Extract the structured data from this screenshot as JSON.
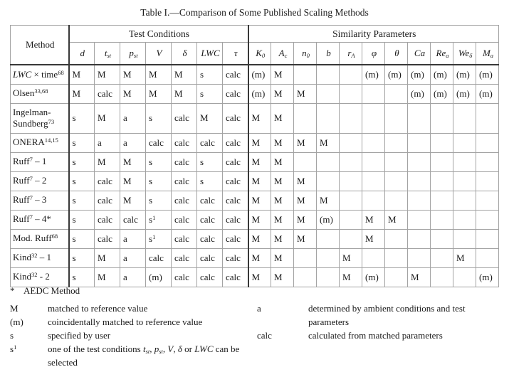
{
  "title": "Table I.—Comparison of Some Published Scaling Methods",
  "table": {
    "method_header": "Method",
    "group_headers": [
      {
        "label": "Test Conditions",
        "span": 7
      },
      {
        "label": "Similarity Parameters",
        "span": 11
      }
    ],
    "test_condition_columns": [
      [
        [
          "i",
          "d"
        ]
      ],
      [
        [
          "i",
          "t"
        ],
        [
          "sub",
          "st"
        ]
      ],
      [
        [
          "i",
          "p"
        ],
        [
          "sub",
          "st"
        ]
      ],
      [
        [
          "i",
          "V"
        ]
      ],
      [
        [
          "i",
          "δ"
        ]
      ],
      [
        [
          "i",
          "LWC"
        ]
      ],
      [
        [
          "i",
          "τ"
        ]
      ]
    ],
    "similarity_columns": [
      [
        [
          "i",
          "K"
        ],
        [
          "sub",
          "0"
        ]
      ],
      [
        [
          "i",
          "A"
        ],
        [
          "sub",
          "c"
        ]
      ],
      [
        [
          "i",
          "n"
        ],
        [
          "sub",
          "0"
        ]
      ],
      [
        [
          "i",
          "b"
        ]
      ],
      [
        [
          "i",
          "r"
        ],
        [
          "sub",
          "A"
        ]
      ],
      [
        [
          "i",
          "φ"
        ]
      ],
      [
        [
          "i",
          "θ"
        ]
      ],
      [
        [
          "i",
          "Ca"
        ]
      ],
      [
        [
          "i",
          "Re"
        ],
        [
          "sub",
          "a"
        ]
      ],
      [
        [
          "i",
          "We"
        ],
        [
          "sub",
          "δ"
        ]
      ],
      [
        [
          "i",
          "M"
        ],
        [
          "sub",
          "a"
        ]
      ]
    ],
    "rows": [
      {
        "method": [
          [
            "i",
            "LWC"
          ],
          [
            "n",
            " × time"
          ],
          [
            "sup",
            "68"
          ]
        ],
        "test": [
          "M",
          "M",
          "M",
          "M",
          "M",
          "s",
          "calc"
        ],
        "sim": [
          "(m)",
          "M",
          "",
          "",
          "",
          "(m)",
          "(m)",
          "(m)",
          "(m)",
          "(m)",
          "(m)"
        ]
      },
      {
        "method": [
          [
            "n",
            "Olsen"
          ],
          [
            "sup",
            "33,68"
          ]
        ],
        "test": [
          "M",
          "calc",
          "M",
          "M",
          "M",
          "s",
          "calc"
        ],
        "sim": [
          "(m)",
          "M",
          "M",
          "",
          "",
          "",
          "",
          "(m)",
          "(m)",
          "(m)",
          "(m)"
        ]
      },
      {
        "method": [
          [
            "n",
            "Ingelman-Sundberg"
          ],
          [
            "sup",
            "73"
          ]
        ],
        "tall": true,
        "test": [
          "s",
          "M",
          "a",
          "s",
          "calc",
          "M",
          "calc"
        ],
        "sim": [
          "M",
          "M",
          "",
          "",
          "",
          "",
          "",
          "",
          "",
          "",
          ""
        ]
      },
      {
        "method": [
          [
            "n",
            "ONERA"
          ],
          [
            "sup",
            "14,15"
          ]
        ],
        "test": [
          "s",
          "a",
          "a",
          "calc",
          "calc",
          "calc",
          "calc"
        ],
        "sim": [
          "M",
          "M",
          "M",
          "M",
          "",
          "",
          "",
          "",
          "",
          "",
          ""
        ]
      },
      {
        "method": [
          [
            "n",
            "Ruff"
          ],
          [
            "sup",
            "7"
          ],
          [
            "n",
            " – 1"
          ]
        ],
        "test": [
          "s",
          "M",
          "M",
          "s",
          "calc",
          "s",
          "calc"
        ],
        "sim": [
          "M",
          "M",
          "",
          "",
          "",
          "",
          "",
          "",
          "",
          "",
          ""
        ]
      },
      {
        "method": [
          [
            "n",
            "Ruff"
          ],
          [
            "sup",
            "7"
          ],
          [
            "n",
            " – 2"
          ]
        ],
        "test": [
          "s",
          "calc",
          "M",
          "s",
          "calc",
          "s",
          "calc"
        ],
        "sim": [
          "M",
          "M",
          "M",
          "",
          "",
          "",
          "",
          "",
          "",
          "",
          ""
        ]
      },
      {
        "method": [
          [
            "n",
            "Ruff"
          ],
          [
            "sup",
            "7"
          ],
          [
            "n",
            " – 3"
          ]
        ],
        "test": [
          "s",
          "calc",
          "M",
          "s",
          "calc",
          "calc",
          "calc"
        ],
        "sim": [
          "M",
          "M",
          "M",
          "M",
          "",
          "",
          "",
          "",
          "",
          "",
          ""
        ]
      },
      {
        "method": [
          [
            "n",
            "Ruff"
          ],
          [
            "sup",
            "7"
          ],
          [
            "n",
            " – 4*"
          ]
        ],
        "test": [
          "s",
          "calc",
          "calc",
          "s^1",
          "calc",
          "calc",
          "calc"
        ],
        "sim": [
          "M",
          "M",
          "M",
          "(m)",
          "",
          "M",
          "M",
          "",
          "",
          "",
          ""
        ]
      },
      {
        "method": [
          [
            "n",
            "Mod. Ruff"
          ],
          [
            "sup",
            "68"
          ]
        ],
        "test": [
          "s",
          "calc",
          "a",
          "s^1",
          "calc",
          "calc",
          "calc"
        ],
        "sim": [
          "M",
          "M",
          "M",
          "",
          "",
          "M",
          "",
          "",
          "",
          "",
          ""
        ]
      },
      {
        "method": [
          [
            "n",
            "Kind"
          ],
          [
            "sup",
            "32"
          ],
          [
            "n",
            " – 1"
          ]
        ],
        "test": [
          "s",
          "M",
          "a",
          "calc",
          "calc",
          "calc",
          "calc"
        ],
        "sim": [
          "M",
          "M",
          "",
          "",
          "M",
          "",
          "",
          "",
          "",
          "M",
          ""
        ]
      },
      {
        "method": [
          [
            "n",
            "Kind"
          ],
          [
            "sup",
            "32"
          ],
          [
            "n",
            " - 2"
          ]
        ],
        "test": [
          "s",
          "M",
          "a",
          "(m)",
          "calc",
          "calc",
          "calc"
        ],
        "sim": [
          "M",
          "M",
          "",
          "",
          "M",
          "(m)",
          "",
          "M",
          "",
          "",
          "(m)"
        ]
      }
    ]
  },
  "footnotes": {
    "aedc": {
      "symbol": "*",
      "text": "AEDC Method"
    },
    "legend_left": [
      {
        "symbol": "M",
        "desc": [
          [
            "n",
            "matched to reference value"
          ]
        ]
      },
      {
        "symbol": "(m)",
        "desc": [
          [
            "n",
            "coincidentally matched to reference value"
          ]
        ]
      },
      {
        "symbol": "s",
        "desc": [
          [
            "n",
            "specified by user"
          ]
        ]
      },
      {
        "symbol": "s^1",
        "desc": [
          [
            "n",
            "one of the test conditions "
          ],
          [
            "i",
            "t"
          ],
          [
            "sub",
            "st"
          ],
          [
            "n",
            ", "
          ],
          [
            "i",
            "p"
          ],
          [
            "sub",
            "st"
          ],
          [
            "n",
            ", "
          ],
          [
            "i",
            "V"
          ],
          [
            "n",
            ", "
          ],
          [
            "i",
            "δ"
          ],
          [
            "n",
            " or "
          ],
          [
            "i",
            "LWC"
          ],
          [
            "n",
            " can be selected"
          ]
        ]
      }
    ],
    "legend_right": [
      {
        "symbol": "a",
        "desc": [
          [
            "n",
            "determined by ambient conditions and test parameters"
          ]
        ]
      },
      {
        "symbol": "calc",
        "desc": [
          [
            "n",
            "calculated from matched parameters"
          ]
        ]
      }
    ]
  },
  "colors": {
    "background": "#ffffff",
    "text": "#1a1a1a",
    "grid_light": "#a3a3a3",
    "grid_heavy": "#383838"
  }
}
